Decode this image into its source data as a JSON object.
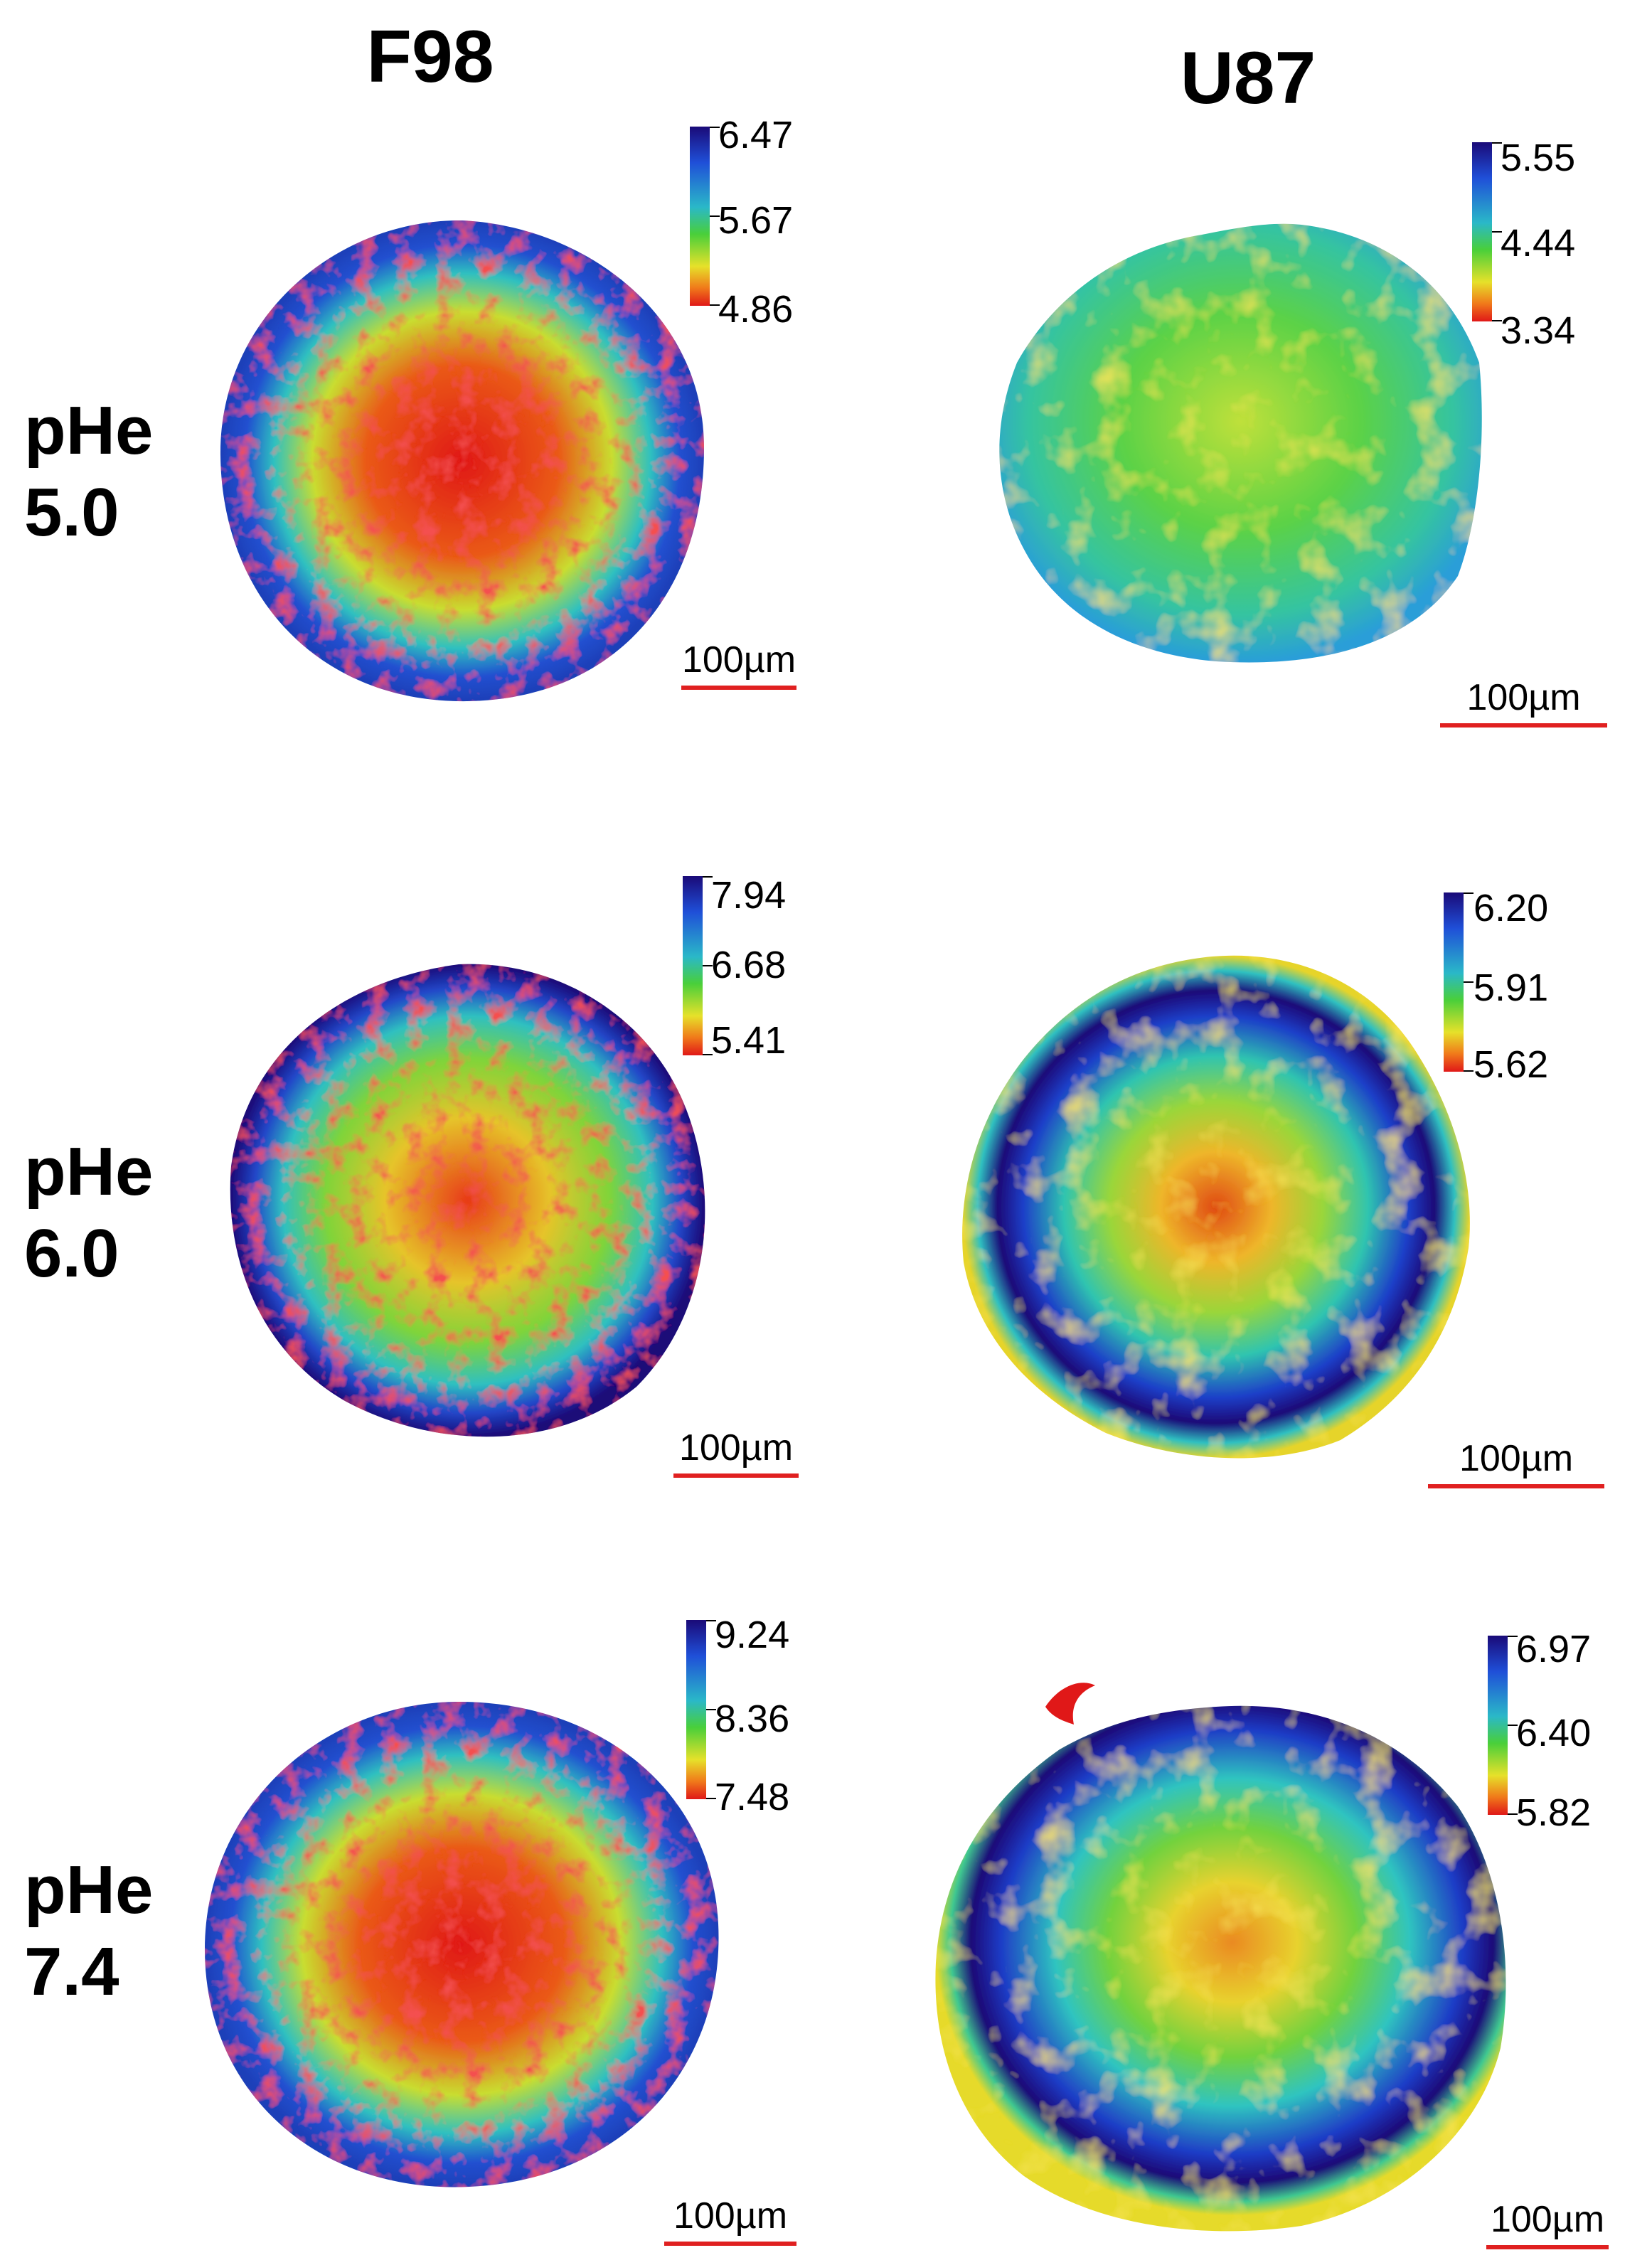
{
  "columns": [
    "F98",
    "U87"
  ],
  "rows": [
    {
      "label_line1": "pHe",
      "label_line2": "5.0"
    },
    {
      "label_line1": "pHe",
      "label_line2": "6.0"
    },
    {
      "label_line1": "pHe",
      "label_line2": "7.4"
    }
  ],
  "colorbars": {
    "f98_r1": [
      "6.47",
      "5.67",
      "4.86"
    ],
    "u87_r1": [
      "5.55",
      "4.44",
      "3.34"
    ],
    "f98_r2": [
      "7.94",
      "6.68",
      "5.41"
    ],
    "u87_r2": [
      "6.20",
      "5.91",
      "5.62"
    ],
    "f98_r3": [
      "9.24",
      "8.36",
      "7.48"
    ],
    "u87_r3": [
      "6.97",
      "6.40",
      "5.82"
    ]
  },
  "scalebar": "100µm",
  "colors": {
    "scalebar": "#e02020",
    "map_high": "#1a0a78",
    "map_mid": "#49cf3a",
    "map_low": "#e01818"
  }
}
